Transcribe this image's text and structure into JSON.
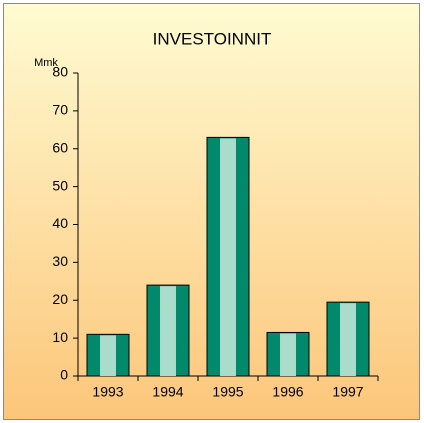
{
  "chart_data": {
    "type": "bar",
    "title": "INVESTOINNIT",
    "y_axis_label": "Mmk",
    "categories": [
      "1993",
      "1994",
      "1995",
      "1996",
      "1997"
    ],
    "values": [
      11,
      24,
      63,
      11.5,
      19.5
    ],
    "color": "#00896b",
    "highlight_color": "#a9dccb",
    "ylim": [
      0,
      80
    ],
    "yticks": [
      0,
      10,
      20,
      30,
      40,
      50,
      60,
      70,
      80
    ]
  }
}
